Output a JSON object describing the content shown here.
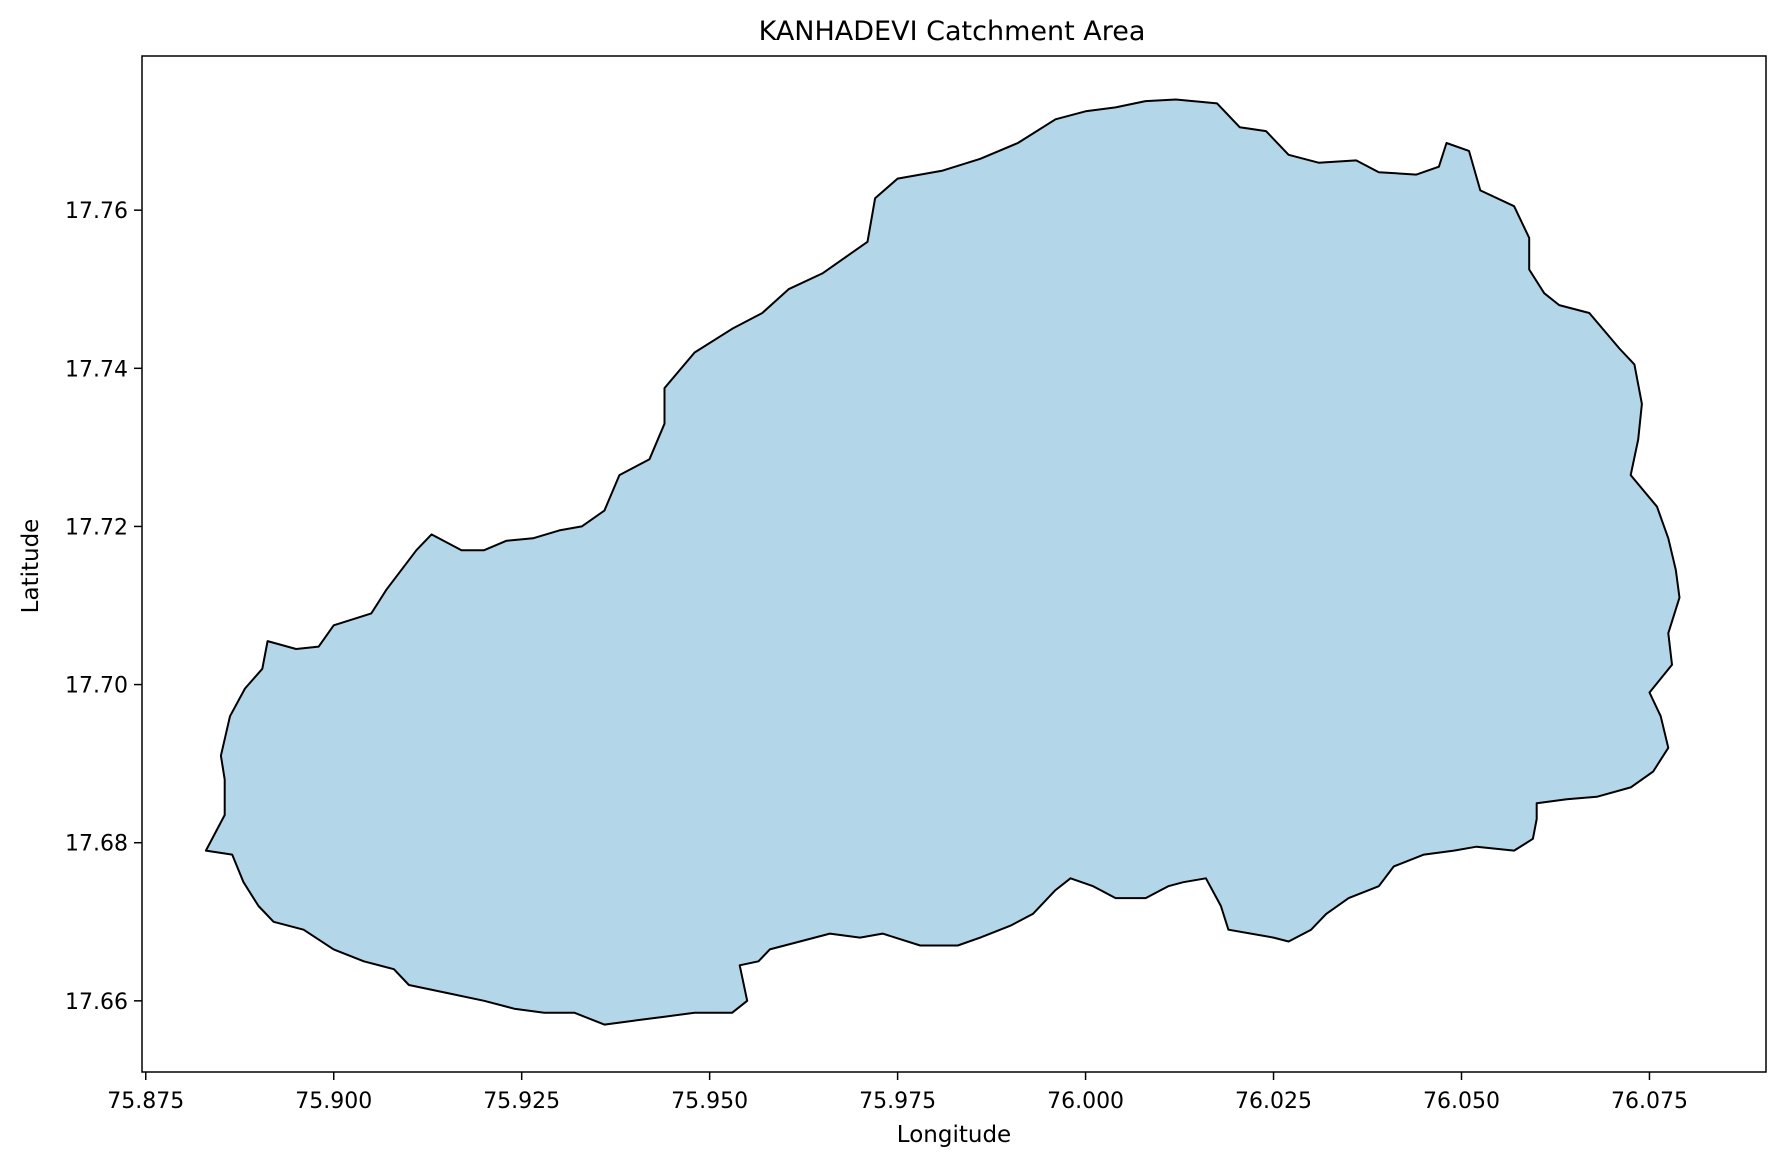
{
  "chart_data": {
    "type": "area",
    "title": "KANHADEVI Catchment Area",
    "xlabel": "Longitude",
    "ylabel": "Latitude",
    "xlim": [
      75.8745,
      76.0905
    ],
    "ylim": [
      17.651,
      17.7795
    ],
    "x_ticks": [
      "75.875",
      "75.900",
      "75.925",
      "75.950",
      "75.975",
      "76.000",
      "76.025",
      "76.050",
      "76.075"
    ],
    "y_ticks": [
      "17.66",
      "17.68",
      "17.70",
      "17.72",
      "17.74",
      "17.76"
    ],
    "grid": false,
    "fill_color": "#b4d6e9",
    "edge_color": "#000000",
    "boundary": [
      [
        75.885,
        17.691
      ],
      [
        75.8862,
        17.696
      ],
      [
        75.8882,
        17.6995
      ],
      [
        75.8905,
        17.702
      ],
      [
        75.8912,
        17.7055
      ],
      [
        75.895,
        17.7045
      ],
      [
        75.898,
        17.7048
      ],
      [
        75.9,
        17.7075
      ],
      [
        75.905,
        17.709
      ],
      [
        75.907,
        17.712
      ],
      [
        75.911,
        17.717
      ],
      [
        75.913,
        17.719
      ],
      [
        75.917,
        17.717
      ],
      [
        75.92,
        17.717
      ],
      [
        75.923,
        17.7182
      ],
      [
        75.9265,
        17.7185
      ],
      [
        75.93,
        17.7195
      ],
      [
        75.933,
        17.72
      ],
      [
        75.936,
        17.722
      ],
      [
        75.938,
        17.7265
      ],
      [
        75.942,
        17.7285
      ],
      [
        75.944,
        17.733
      ],
      [
        75.944,
        17.7375
      ],
      [
        75.948,
        17.742
      ],
      [
        75.953,
        17.745
      ],
      [
        75.957,
        17.747
      ],
      [
        75.9605,
        17.75
      ],
      [
        75.965,
        17.752
      ],
      [
        75.971,
        17.756
      ],
      [
        75.972,
        17.7615
      ],
      [
        75.975,
        17.764
      ],
      [
        75.981,
        17.765
      ],
      [
        75.986,
        17.7665
      ],
      [
        75.991,
        17.7685
      ],
      [
        75.996,
        17.7715
      ],
      [
        76.0,
        17.7725
      ],
      [
        76.004,
        17.773
      ],
      [
        76.008,
        17.7738
      ],
      [
        76.012,
        17.774
      ],
      [
        76.0175,
        17.7735
      ],
      [
        76.0205,
        17.7705
      ],
      [
        76.024,
        17.77
      ],
      [
        76.027,
        17.767
      ],
      [
        76.031,
        17.766
      ],
      [
        76.036,
        17.7663
      ],
      [
        76.039,
        17.7648
      ],
      [
        76.044,
        17.7645
      ],
      [
        76.047,
        17.7655
      ],
      [
        76.048,
        17.7685
      ],
      [
        76.051,
        17.7675
      ],
      [
        76.0525,
        17.7625
      ],
      [
        76.057,
        17.7605
      ],
      [
        76.059,
        17.7565
      ],
      [
        76.059,
        17.7525
      ],
      [
        76.061,
        17.7495
      ],
      [
        76.063,
        17.748
      ],
      [
        76.067,
        17.747
      ],
      [
        76.071,
        17.7425
      ],
      [
        76.073,
        17.7405
      ],
      [
        76.074,
        17.7355
      ],
      [
        76.0735,
        17.731
      ],
      [
        76.0725,
        17.7265
      ],
      [
        76.076,
        17.7225
      ],
      [
        76.0775,
        17.7185
      ],
      [
        76.0785,
        17.7145
      ],
      [
        76.079,
        17.711
      ],
      [
        76.0775,
        17.7065
      ],
      [
        76.078,
        17.7025
      ],
      [
        76.075,
        17.699
      ],
      [
        76.0765,
        17.696
      ],
      [
        76.0775,
        17.692
      ],
      [
        76.0755,
        17.689
      ],
      [
        76.0725,
        17.687
      ],
      [
        76.068,
        17.6858
      ],
      [
        76.064,
        17.6855
      ],
      [
        76.06,
        17.685
      ],
      [
        76.06,
        17.683
      ],
      [
        76.0595,
        17.6805
      ],
      [
        76.057,
        17.679
      ],
      [
        76.052,
        17.6795
      ],
      [
        76.049,
        17.679
      ],
      [
        76.045,
        17.6785
      ],
      [
        76.041,
        17.677
      ],
      [
        76.039,
        17.6745
      ],
      [
        76.035,
        17.673
      ],
      [
        76.032,
        17.671
      ],
      [
        76.03,
        17.669
      ],
      [
        76.027,
        17.6675
      ],
      [
        76.025,
        17.668
      ],
      [
        76.022,
        17.6685
      ],
      [
        76.019,
        17.669
      ],
      [
        76.018,
        17.672
      ],
      [
        76.016,
        17.6755
      ],
      [
        76.013,
        17.675
      ],
      [
        76.011,
        17.6745
      ],
      [
        76.008,
        17.673
      ],
      [
        76.004,
        17.673
      ],
      [
        76.001,
        17.6745
      ],
      [
        75.998,
        17.6755
      ],
      [
        75.996,
        17.674
      ],
      [
        75.993,
        17.671
      ],
      [
        75.99,
        17.6695
      ],
      [
        75.986,
        17.668
      ],
      [
        75.983,
        17.667
      ],
      [
        75.978,
        17.667
      ],
      [
        75.973,
        17.6685
      ],
      [
        75.97,
        17.668
      ],
      [
        75.966,
        17.6685
      ],
      [
        75.962,
        17.6675
      ],
      [
        75.958,
        17.6665
      ],
      [
        75.9565,
        17.665
      ],
      [
        75.954,
        17.6645
      ],
      [
        75.955,
        17.66
      ],
      [
        75.953,
        17.6585
      ],
      [
        75.948,
        17.6585
      ],
      [
        75.944,
        17.658
      ],
      [
        75.94,
        17.6575
      ],
      [
        75.936,
        17.657
      ],
      [
        75.932,
        17.6585
      ],
      [
        75.928,
        17.6585
      ],
      [
        75.924,
        17.659
      ],
      [
        75.92,
        17.66
      ],
      [
        75.915,
        17.661
      ],
      [
        75.91,
        17.662
      ],
      [
        75.908,
        17.664
      ],
      [
        75.904,
        17.665
      ],
      [
        75.9,
        17.6665
      ],
      [
        75.896,
        17.669
      ],
      [
        75.892,
        17.67
      ],
      [
        75.89,
        17.672
      ],
      [
        75.888,
        17.675
      ],
      [
        75.8865,
        17.6785
      ],
      [
        75.883,
        17.679
      ],
      [
        75.8855,
        17.6835
      ],
      [
        75.8855,
        17.688
      ]
    ]
  }
}
